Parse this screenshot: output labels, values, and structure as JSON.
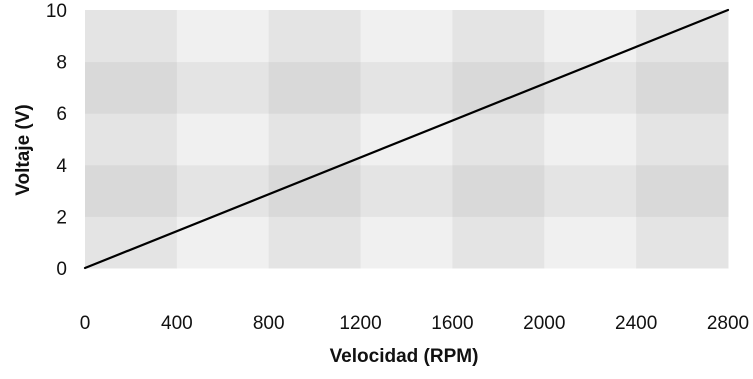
{
  "chart_data": {
    "type": "line",
    "xlabel": "Velocidad (RPM)",
    "ylabel": "Voltaje (V)",
    "xlim": [
      0,
      2800
    ],
    "ylim": [
      0,
      10
    ],
    "x_ticks": [
      "0",
      "400",
      "800",
      "1200",
      "1600",
      "2000",
      "2400",
      "2800"
    ],
    "y_ticks": [
      "0",
      "2",
      "4",
      "6",
      "8",
      "10"
    ],
    "series": [
      {
        "x": [
          0,
          2800
        ],
        "y": [
          0,
          10
        ],
        "color": "#000000"
      }
    ],
    "grid": "checkerboard background bands",
    "background_colors": [
      "#d9d9d9",
      "#e4e4e4",
      "#f0f0f0"
    ],
    "legend": "none"
  }
}
